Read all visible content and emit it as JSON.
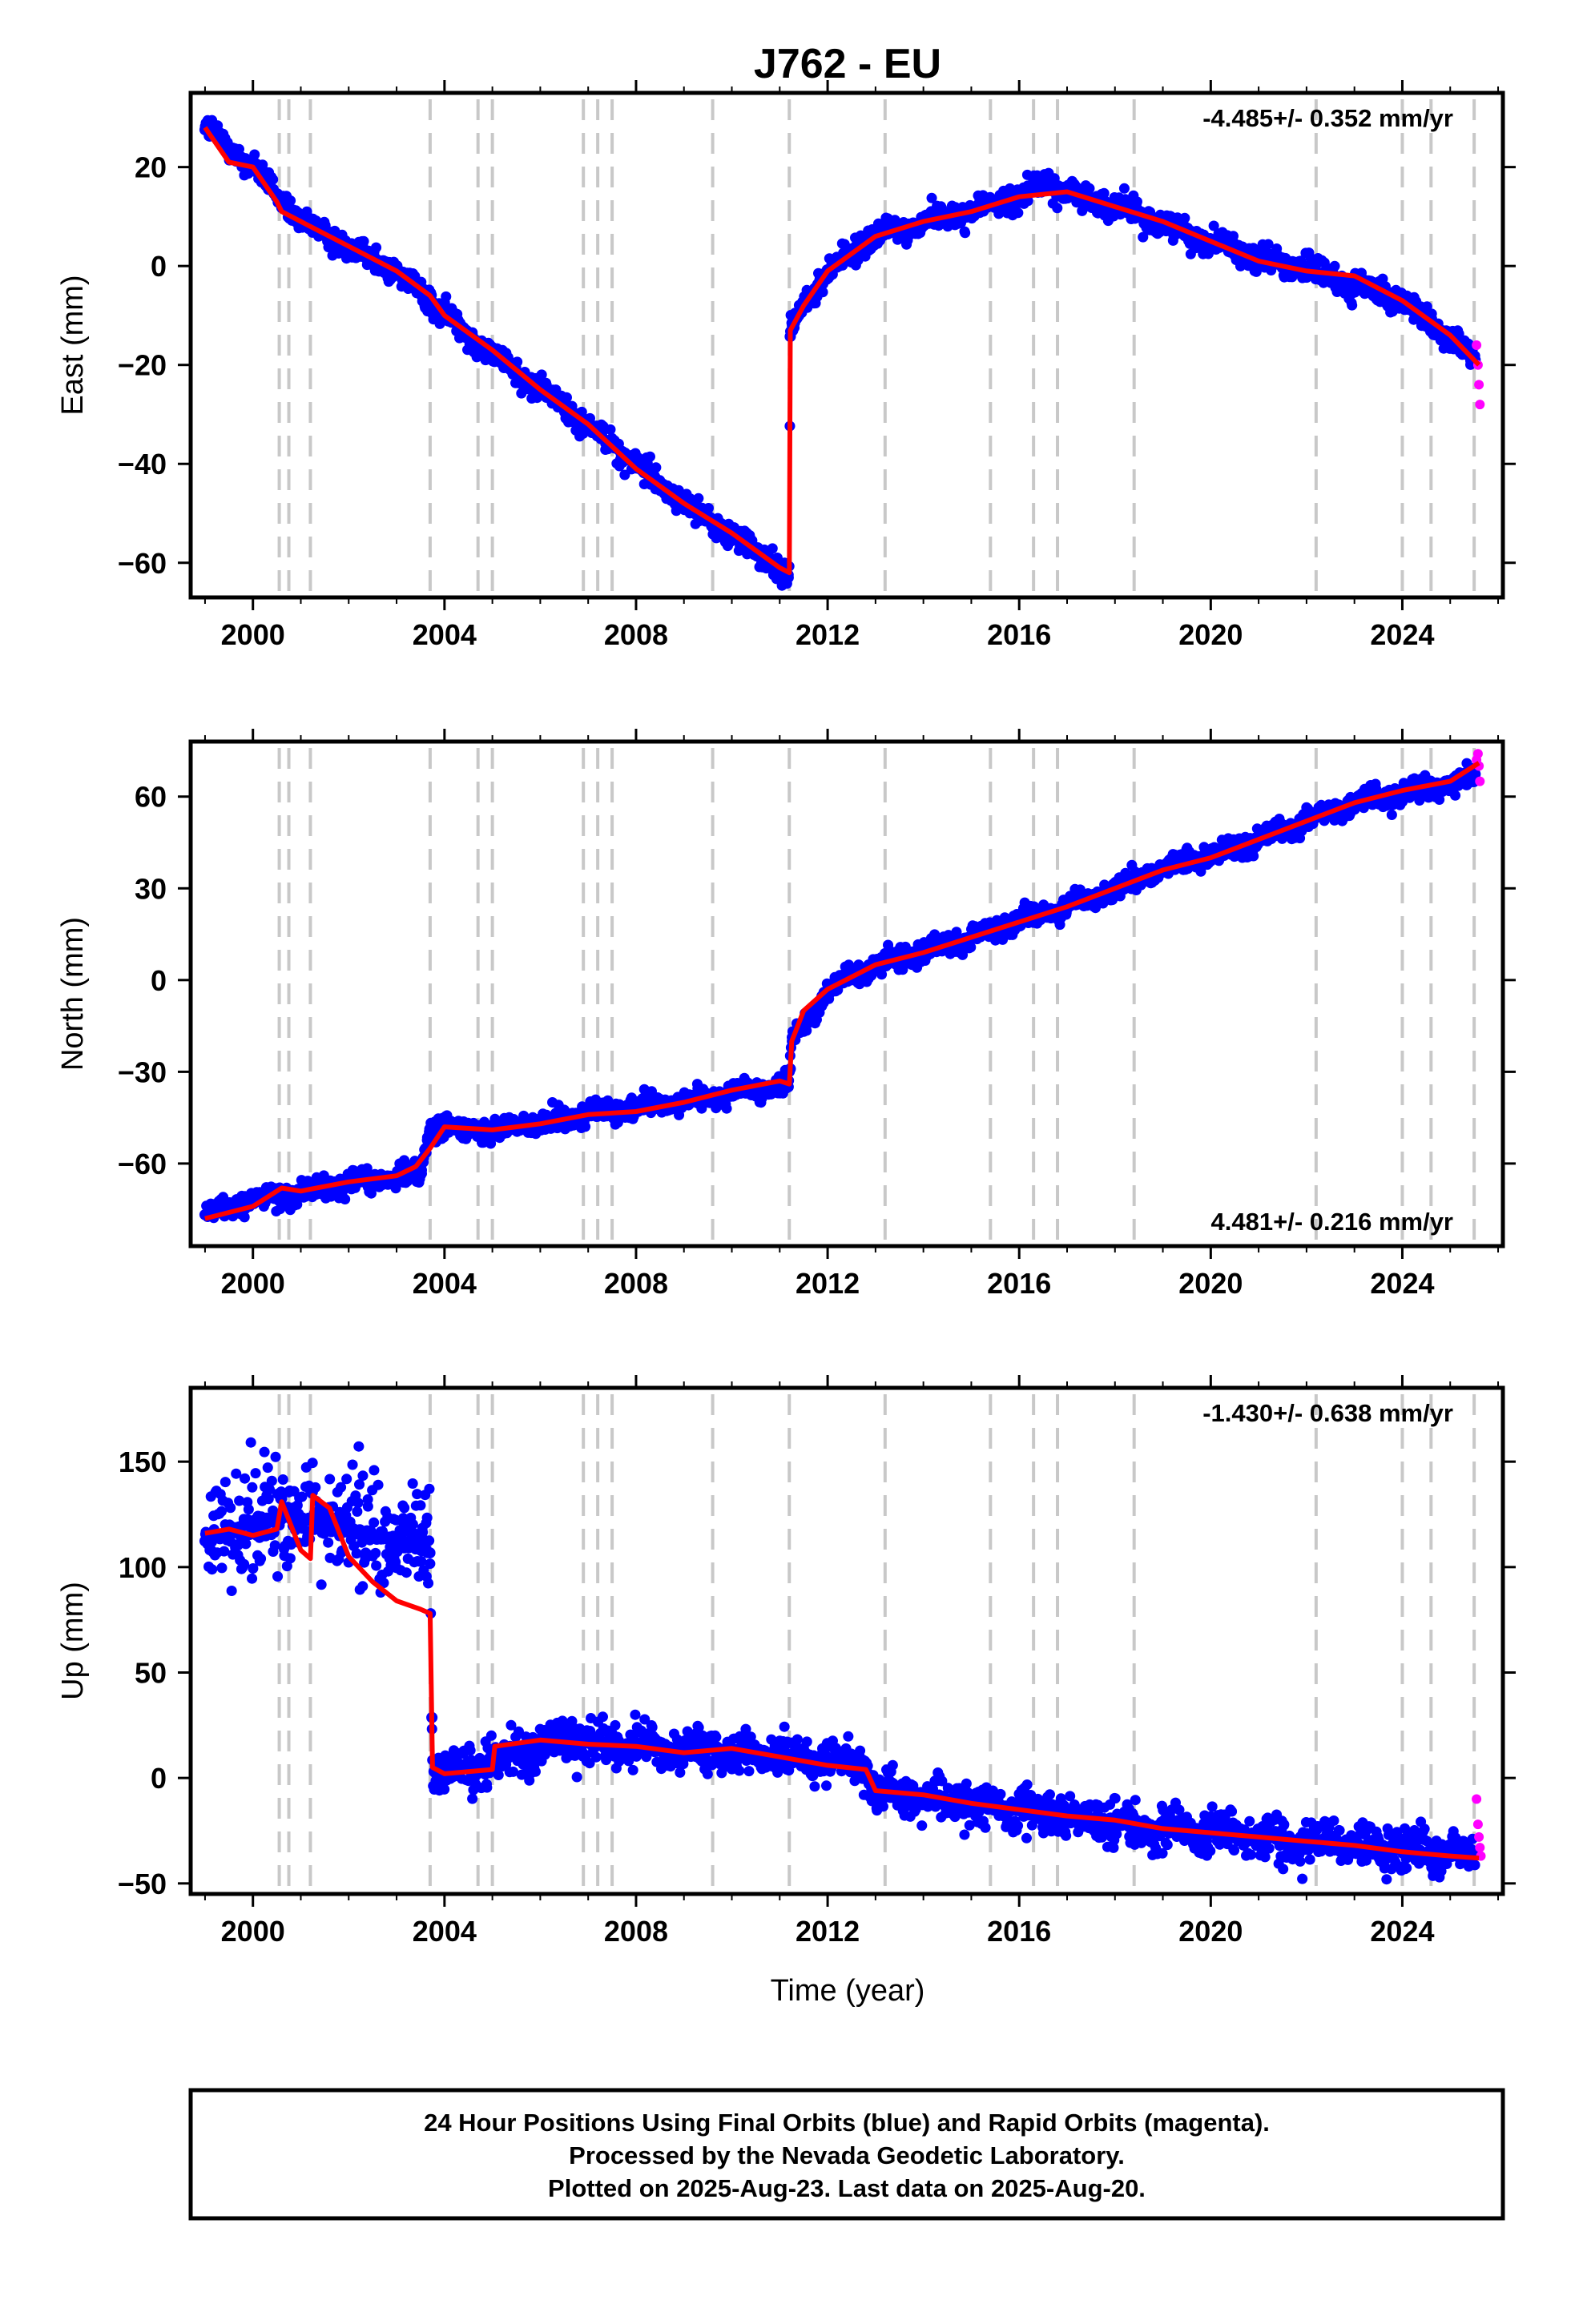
{
  "chart_data": {
    "type": "scatter",
    "title": "J762 - EU",
    "xlabel": "Time (year)",
    "xlim": [
      1998.7,
      2026.1
    ],
    "x_ticks": [
      2000,
      2004,
      2008,
      2012,
      2016,
      2020,
      2024
    ],
    "x_tick_labels": [
      "2000",
      "2004",
      "2008",
      "2012",
      "2016",
      "2020",
      "2024"
    ],
    "equipment_change_epochs": [
      2000.55,
      2000.75,
      2001.2,
      2003.7,
      2004.7,
      2005.0,
      2006.9,
      2007.2,
      2007.5,
      2009.6,
      2011.2,
      2013.2,
      2015.4,
      2016.3,
      2016.8,
      2018.4,
      2022.2,
      2024.0,
      2024.6,
      2025.5
    ],
    "colors": {
      "final_orbits": "#0000ff",
      "rapid_orbits": "#ff00ff",
      "model": "#ff0000",
      "epoch_lines": "#c8c8c8"
    },
    "panels": [
      {
        "component": "East",
        "ylabel": "East (mm)",
        "ylim": [
          -67,
          35
        ],
        "y_ticks": [
          20,
          0,
          -20,
          -40,
          -60
        ],
        "y_tick_labels": [
          "20",
          "0",
          "−20",
          "−40",
          "−60"
        ],
        "rate_label": "-4.485+/- 0.352 mm/yr",
        "rate_position": "top-right",
        "model_line": {
          "x": [
            1999.0,
            1999.5,
            2000.0,
            2000.5,
            2000.6,
            2001.0,
            2002.0,
            2003.0,
            2003.7,
            2004.0,
            2005.0,
            2006.0,
            2007.0,
            2008.0,
            2009.0,
            2010.0,
            2011.0,
            2011.2,
            2011.22,
            2011.5,
            2012.0,
            2013.0,
            2014.0,
            2015.0,
            2016.0,
            2017.0,
            2018.0,
            2019.0,
            2020.0,
            2021.0,
            2022.0,
            2023.0,
            2024.0,
            2025.0,
            2025.6
          ],
          "y": [
            28,
            21,
            20,
            13,
            11,
            9,
            4,
            -1,
            -6,
            -10,
            -17,
            -25,
            -32,
            -41,
            -48,
            -54,
            -61,
            -62,
            -13,
            -8,
            -1,
            6,
            9,
            11,
            14,
            15,
            12,
            9,
            5,
            1,
            -1,
            -2,
            -7,
            -14,
            -20
          ]
        },
        "final_orbits_trend": {
          "x": [
            1999.0,
            2000.0,
            2000.6,
            2001.0,
            2003.0,
            2003.7,
            2005.0,
            2007.0,
            2009.0,
            2011.0,
            2011.2,
            2011.22,
            2011.5,
            2012.0,
            2013.0,
            2014.0,
            2015.0,
            2016.0,
            2016.5,
            2017.0,
            2018.0,
            2020.0,
            2022.0,
            2024.0,
            2025.5
          ],
          "y": [
            28,
            20,
            13,
            9,
            -1,
            -7,
            -18,
            -32,
            -48,
            -61,
            -63,
            -13,
            -8,
            -1,
            6,
            9,
            11,
            14,
            17,
            15,
            12,
            5,
            -1,
            -7,
            -19
          ]
        },
        "rapid_orbits": {
          "x": [
            2025.55,
            2025.58,
            2025.6,
            2025.62
          ],
          "y": [
            -16,
            -20,
            -24,
            -28
          ]
        }
      },
      {
        "component": "North",
        "ylabel": "North (mm)",
        "ylim": [
          -87,
          78
        ],
        "y_ticks": [
          60,
          30,
          0,
          -30,
          -60
        ],
        "y_tick_labels": [
          "60",
          "30",
          "0",
          "−30",
          "−60"
        ],
        "rate_label": "4.481+/- 0.216 mm/yr",
        "rate_position": "bottom-right",
        "model_line": {
          "x": [
            1999.0,
            2000.0,
            2000.6,
            2001.0,
            2002.0,
            2003.0,
            2003.4,
            2003.7,
            2004.0,
            2005.0,
            2006.0,
            2007.0,
            2008.0,
            2009.0,
            2010.0,
            2011.0,
            2011.2,
            2011.25,
            2011.5,
            2012.0,
            2013.0,
            2014.0,
            2015.0,
            2016.0,
            2017.0,
            2018.0,
            2019.0,
            2020.0,
            2021.0,
            2022.0,
            2023.0,
            2024.0,
            2025.0,
            2025.6
          ],
          "y": [
            -78,
            -74,
            -68,
            -69,
            -66,
            -64,
            -61,
            -55,
            -48,
            -49,
            -47,
            -44,
            -43,
            -40,
            -36,
            -33,
            -34,
            -20,
            -10,
            -3,
            5,
            9,
            14,
            19,
            24,
            30,
            36,
            40,
            46,
            52,
            58,
            62,
            65,
            71
          ]
        },
        "final_orbits_trend": {
          "x": [
            1999.0,
            2000.0,
            2001.0,
            2002.0,
            2003.0,
            2003.5,
            2003.7,
            2005.0,
            2007.0,
            2009.0,
            2011.0,
            2011.2,
            2011.25,
            2012.0,
            2013.0,
            2015.0,
            2017.0,
            2019.0,
            2021.0,
            2023.0,
            2025.5
          ],
          "y": [
            -77,
            -72,
            -69,
            -66,
            -65,
            -63,
            -48,
            -49,
            -44,
            -40,
            -34,
            -34,
            -20,
            -3,
            5,
            14,
            24,
            36,
            46,
            58,
            66
          ]
        },
        "rapid_orbits": {
          "x": [
            2025.55,
            2025.58,
            2025.6,
            2025.62
          ],
          "y": [
            72,
            74,
            70,
            65
          ]
        }
      },
      {
        "component": "Up",
        "ylabel": "Up (mm)",
        "ylim": [
          -55,
          185
        ],
        "y_ticks": [
          150,
          100,
          50,
          0,
          -50
        ],
        "y_tick_labels": [
          "150",
          "100",
          "50",
          "0",
          "−50"
        ],
        "rate_label": "-1.430+/- 0.638 mm/yr",
        "rate_position": "top-right",
        "model_line": {
          "x": [
            1999.0,
            1999.5,
            2000.0,
            2000.5,
            2000.6,
            2001.0,
            2001.2,
            2001.25,
            2001.6,
            2002.0,
            2002.5,
            2003.0,
            2003.5,
            2003.7,
            2003.75,
            2004.0,
            2004.5,
            2005.0,
            2005.05,
            2006.0,
            2007.0,
            2008.0,
            2009.0,
            2010.0,
            2011.0,
            2012.0,
            2012.8,
            2013.0,
            2014.0,
            2015.0,
            2016.0,
            2017.0,
            2018.0,
            2019.0,
            2020.0,
            2021.0,
            2022.0,
            2023.0,
            2024.0,
            2025.0,
            2025.6
          ],
          "y": [
            116,
            118,
            115,
            118,
            131,
            108,
            104,
            134,
            128,
            105,
            93,
            84,
            80,
            78,
            5,
            2,
            3,
            4,
            15,
            18,
            16,
            15,
            12,
            14,
            10,
            6,
            4,
            -6,
            -8,
            -12,
            -15,
            -18,
            -20,
            -24,
            -26,
            -28,
            -30,
            -32,
            -35,
            -37,
            -38
          ]
        },
        "final_orbits_trend": {
          "x": [
            1999.0,
            2000.0,
            2001.0,
            2002.0,
            2003.0,
            2003.7,
            2003.75,
            2005.0,
            2006.5,
            2008.0,
            2010.0,
            2012.0,
            2012.8,
            2013.0,
            2015.0,
            2017.0,
            2019.0,
            2021.0,
            2023.0,
            2025.5
          ],
          "y": [
            112,
            122,
            124,
            118,
            112,
            108,
            2,
            8,
            18,
            15,
            13,
            9,
            6,
            -6,
            -12,
            -18,
            -24,
            -28,
            -32,
            -38
          ]
        },
        "rapid_orbits": {
          "x": [
            2025.55,
            2025.58,
            2025.6,
            2025.62,
            2025.64
          ],
          "y": [
            -10,
            -22,
            -28,
            -33,
            -37
          ]
        }
      }
    ]
  },
  "footer": {
    "line1": "24 Hour Positions Using Final Orbits (blue) and Rapid Orbits (magenta).",
    "line2": "Processed by the Nevada Geodetic Laboratory.",
    "line3": "Plotted on 2025-Aug-23. Last data on 2025-Aug-20."
  }
}
